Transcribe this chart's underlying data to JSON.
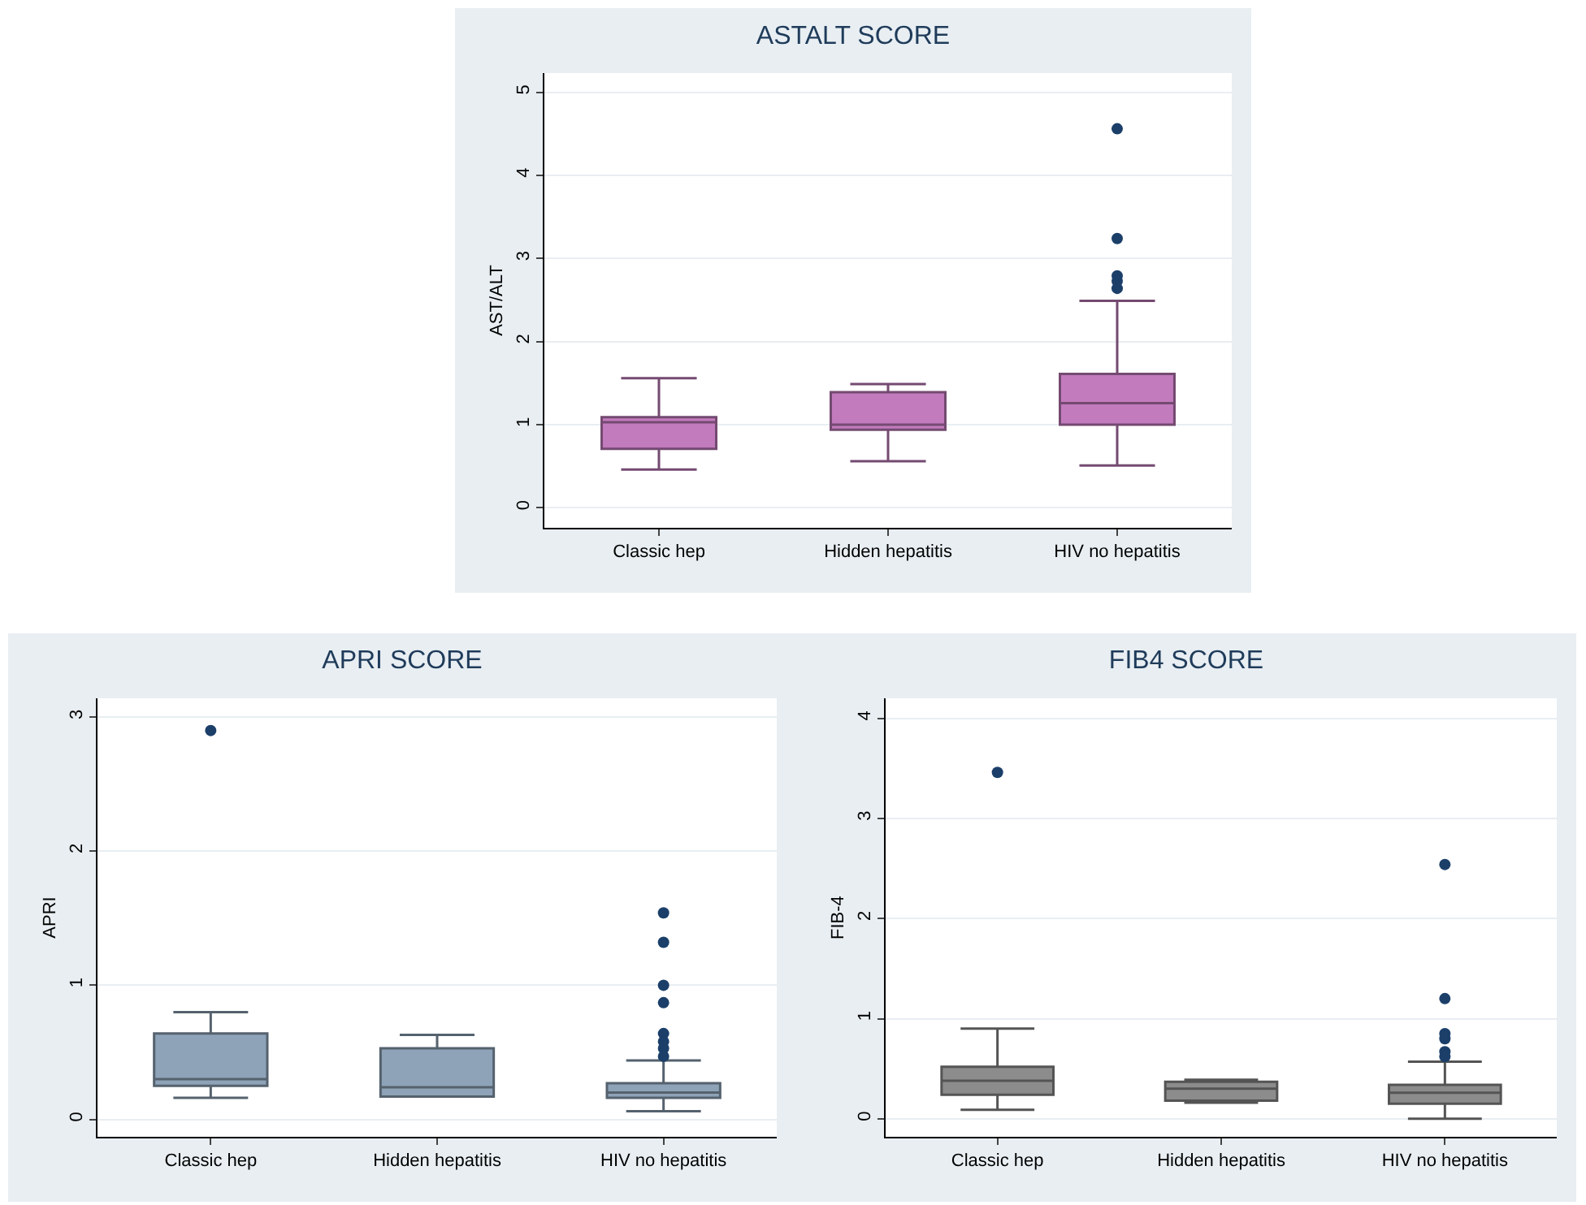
{
  "chart_data": [
    {
      "type": "box",
      "title": "ASTALT SCORE",
      "ylabel": "AST/ALT",
      "categories": [
        "Classic hep",
        "Hidden hepatitis",
        "HIV no hepatitis"
      ],
      "color": "#c27bbd",
      "ylim": [
        -0.24,
        5.23
      ],
      "yticks": [
        0,
        1,
        2,
        3,
        4,
        5
      ],
      "grid": "y",
      "boxes": [
        {
          "low": 0.46,
          "q1": 0.71,
          "median": 1.03,
          "q3": 1.09,
          "high": 1.56
        },
        {
          "low": 0.56,
          "q1": 0.94,
          "median": 1.0,
          "q3": 1.39,
          "high": 1.49
        },
        {
          "low": 0.51,
          "q1": 1.0,
          "median": 1.26,
          "q3": 1.61,
          "high": 2.49,
          "outliers": [
            4.56,
            3.24,
            2.79,
            2.73,
            2.64
          ]
        }
      ]
    },
    {
      "type": "box",
      "title": "APRI SCORE",
      "ylabel": "APRI",
      "categories": [
        "Classic hep",
        "Hidden hepatitis",
        "HIV no hepatitis"
      ],
      "color": "#8ea3b8",
      "ylim": [
        -0.13,
        3.14
      ],
      "yticks": [
        0,
        1,
        2,
        3
      ],
      "grid": "y",
      "boxes": [
        {
          "low": 0.16,
          "q1": 0.25,
          "median": 0.3,
          "q3": 0.64,
          "high": 0.8,
          "outliers": [
            2.9
          ]
        },
        {
          "low": 0.17,
          "q1": 0.17,
          "median": 0.24,
          "q3": 0.53,
          "high": 0.63
        },
        {
          "low": 0.06,
          "q1": 0.16,
          "median": 0.2,
          "q3": 0.27,
          "high": 0.44,
          "outliers": [
            1.54,
            1.32,
            1.0,
            0.87,
            0.64,
            0.58,
            0.53,
            0.47
          ]
        }
      ]
    },
    {
      "type": "box",
      "title": "FIB4 SCORE",
      "ylabel": "FIB-4",
      "categories": [
        "Classic hep",
        "Hidden hepatitis",
        "HIV no hepatitis"
      ],
      "color": "#8c8c8c",
      "ylim": [
        -0.18,
        4.2
      ],
      "yticks": [
        0,
        1,
        2,
        3,
        4
      ],
      "grid": "y",
      "boxes": [
        {
          "low": 0.09,
          "q1": 0.24,
          "median": 0.38,
          "q3": 0.52,
          "high": 0.9,
          "outliers": [
            3.46
          ]
        },
        {
          "low": 0.16,
          "q1": 0.18,
          "median": 0.3,
          "q3": 0.37,
          "high": 0.39
        },
        {
          "low": 0.0,
          "q1": 0.15,
          "median": 0.26,
          "q3": 0.34,
          "high": 0.57,
          "outliers": [
            2.54,
            1.2,
            0.85,
            0.8,
            0.67,
            0.62
          ]
        }
      ]
    }
  ]
}
